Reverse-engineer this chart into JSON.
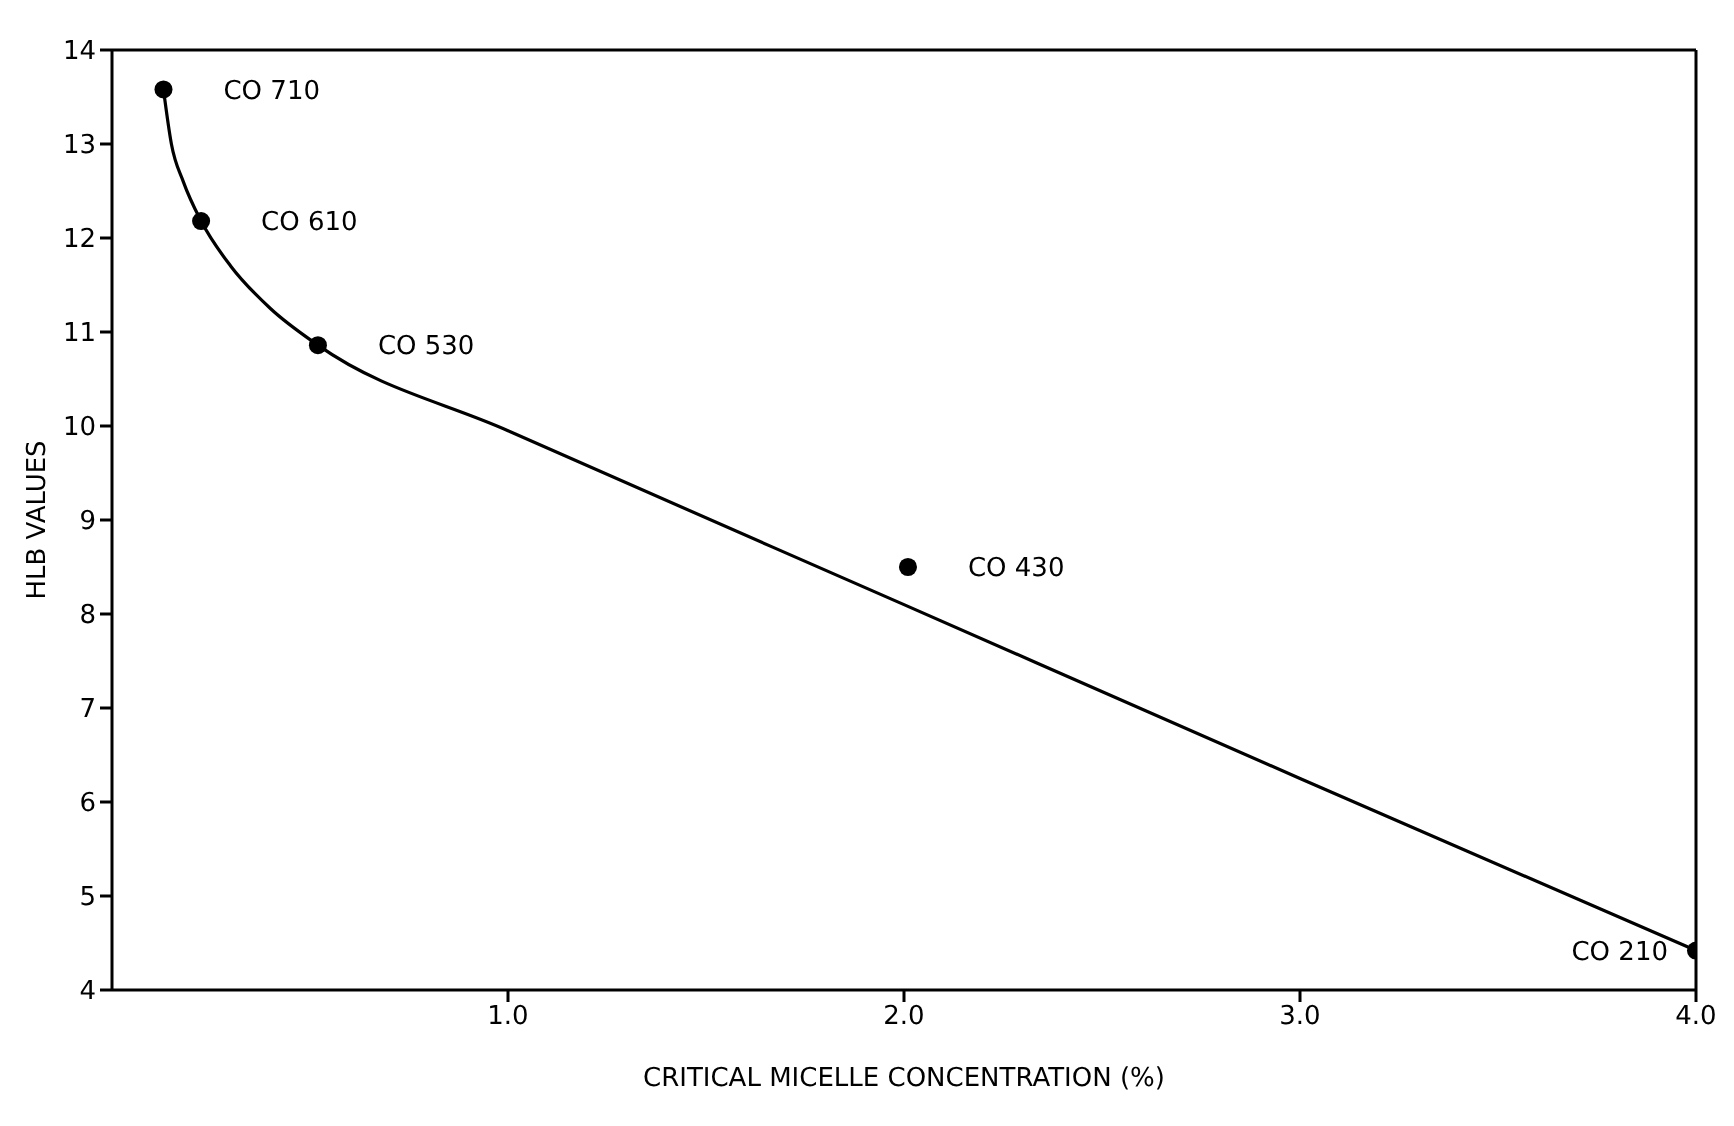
{
  "chart_data": {
    "type": "scatter",
    "xlabel": "CRITICAL MICELLE CONCENTRATION (%)",
    "ylabel": "HLB VALUES",
    "xlim": [
      0,
      4
    ],
    "ylim": [
      4,
      14
    ],
    "xticks": [
      {
        "value": 1,
        "label": "1.0"
      },
      {
        "value": 2,
        "label": "2.0"
      },
      {
        "value": 3,
        "label": "3.0"
      },
      {
        "value": 4,
        "label": "4.0"
      }
    ],
    "yticks": [
      4,
      5,
      6,
      7,
      8,
      9,
      10,
      11,
      12,
      13,
      14
    ],
    "grid": false,
    "series": [
      {
        "color": "#000000",
        "marker": "circle",
        "x": [
          0.13,
          0.225,
          0.52,
          2.01,
          4.0
        ],
        "values": [
          13.58,
          12.18,
          10.86,
          8.5,
          4.42
        ]
      },
      {
        "type": "line",
        "color": "#000000",
        "marker": "none",
        "line_style": "solid",
        "x": [
          0.13,
          0.15,
          0.18,
          0.225,
          0.3,
          0.4,
          0.52,
          1.0,
          2.0,
          3.0,
          4.0
        ],
        "values": [
          13.58,
          13.0,
          12.6,
          12.18,
          11.7,
          11.25,
          10.86,
          9.95,
          8.1,
          6.25,
          4.42
        ]
      }
    ],
    "annotations": [
      {
        "text": "CO 710",
        "x": 0.13,
        "y": 13.58
      },
      {
        "text": "CO 610",
        "x": 0.225,
        "y": 12.18
      },
      {
        "text": "CO 530",
        "x": 0.52,
        "y": 10.86
      },
      {
        "text": "CO 430",
        "x": 2.01,
        "y": 8.5
      },
      {
        "text": "CO 210",
        "x": 4.0,
        "y": 4.42
      }
    ]
  }
}
